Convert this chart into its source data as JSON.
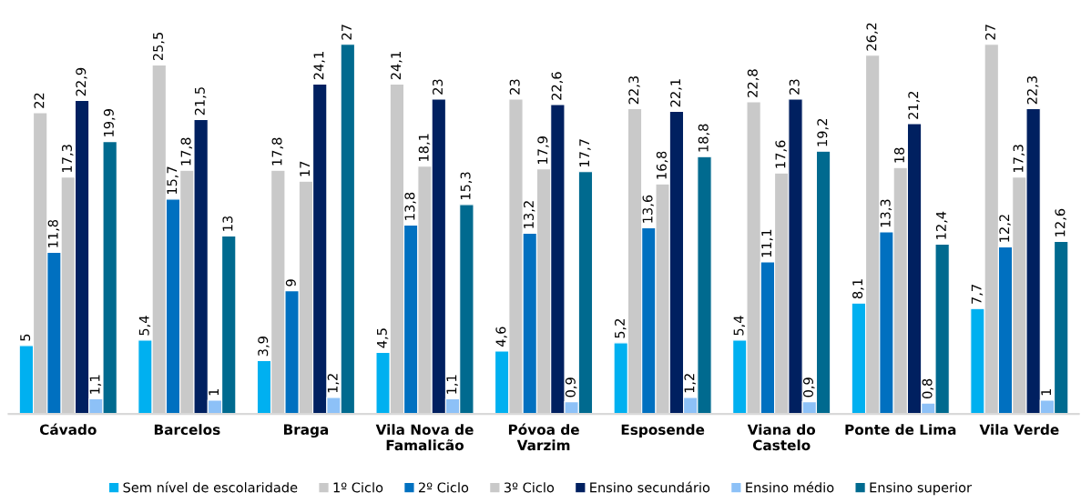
{
  "chart_data": {
    "type": "bar",
    "categories": [
      "Cávado",
      "Barcelos",
      "Braga",
      "Vila Nova de Famalicão",
      "Póvoa de Varzim",
      "Esposende",
      "Viana do Castelo",
      "Ponte de Lima",
      "Vila Verde"
    ],
    "series": [
      {
        "name": "Sem nível de escolaridade",
        "color": "#00b0f0",
        "values": [
          5,
          5.4,
          3.9,
          4.5,
          4.6,
          5.2,
          5.4,
          8.1,
          7.7
        ],
        "value_labels": [
          "5",
          "5,4",
          "3,9",
          "4,5",
          "4,6",
          "5,2",
          "5,4",
          "8,1",
          "7,7"
        ]
      },
      {
        "name": "1º Ciclo",
        "color": "#c9c9c9",
        "values": [
          22,
          25.5,
          17.8,
          24.1,
          23,
          22.3,
          22.8,
          26.2,
          27
        ],
        "value_labels": [
          "22",
          "25,5",
          "17,8",
          "24,1",
          "23",
          "22,3",
          "22,8",
          "26,2",
          "27"
        ]
      },
      {
        "name": "2º Ciclo",
        "color": "#0070c0",
        "values": [
          11.8,
          15.7,
          9,
          13.8,
          13.2,
          13.6,
          11.1,
          13.3,
          12.2
        ],
        "value_labels": [
          "11,8",
          "15,7",
          "9",
          "13,8",
          "13,2",
          "13,6",
          "11,1",
          "13,3",
          "12,2"
        ]
      },
      {
        "name": "3º Ciclo",
        "color": "#c9c9c9",
        "values": [
          17.3,
          17.8,
          17,
          18.1,
          17.9,
          16.8,
          17.6,
          18,
          17.3
        ],
        "value_labels": [
          "17,3",
          "17,8",
          "17",
          "18,1",
          "17,9",
          "16,8",
          "17,6",
          "18",
          "17,3"
        ]
      },
      {
        "name": "Ensino secundário",
        "color": "#002060",
        "values": [
          22.9,
          21.5,
          24.1,
          23,
          22.6,
          22.1,
          23,
          21.2,
          22.3
        ],
        "value_labels": [
          "22,9",
          "21,5",
          "24,1",
          "23",
          "22,6",
          "22,1",
          "23",
          "21,2",
          "22,3"
        ]
      },
      {
        "name": "Ensino médio",
        "color": "#8dc1f7",
        "values": [
          1.1,
          1,
          1.2,
          1.1,
          0.9,
          1.2,
          0.9,
          0.8,
          1
        ],
        "value_labels": [
          "1,1",
          "1",
          "1,2",
          "1,1",
          "0,9",
          "1,2",
          "0,9",
          "0,8",
          "1"
        ]
      },
      {
        "name": "Ensino superior",
        "color": "#006a8f",
        "values": [
          19.9,
          13,
          27,
          15.3,
          17.7,
          18.8,
          19.2,
          12.4,
          12.6
        ],
        "value_labels": [
          "19,9",
          "13",
          "27",
          "15,3",
          "17,7",
          "18,8",
          "19,2",
          "12,4",
          "12,6"
        ]
      }
    ],
    "legend": "bottom"
  }
}
